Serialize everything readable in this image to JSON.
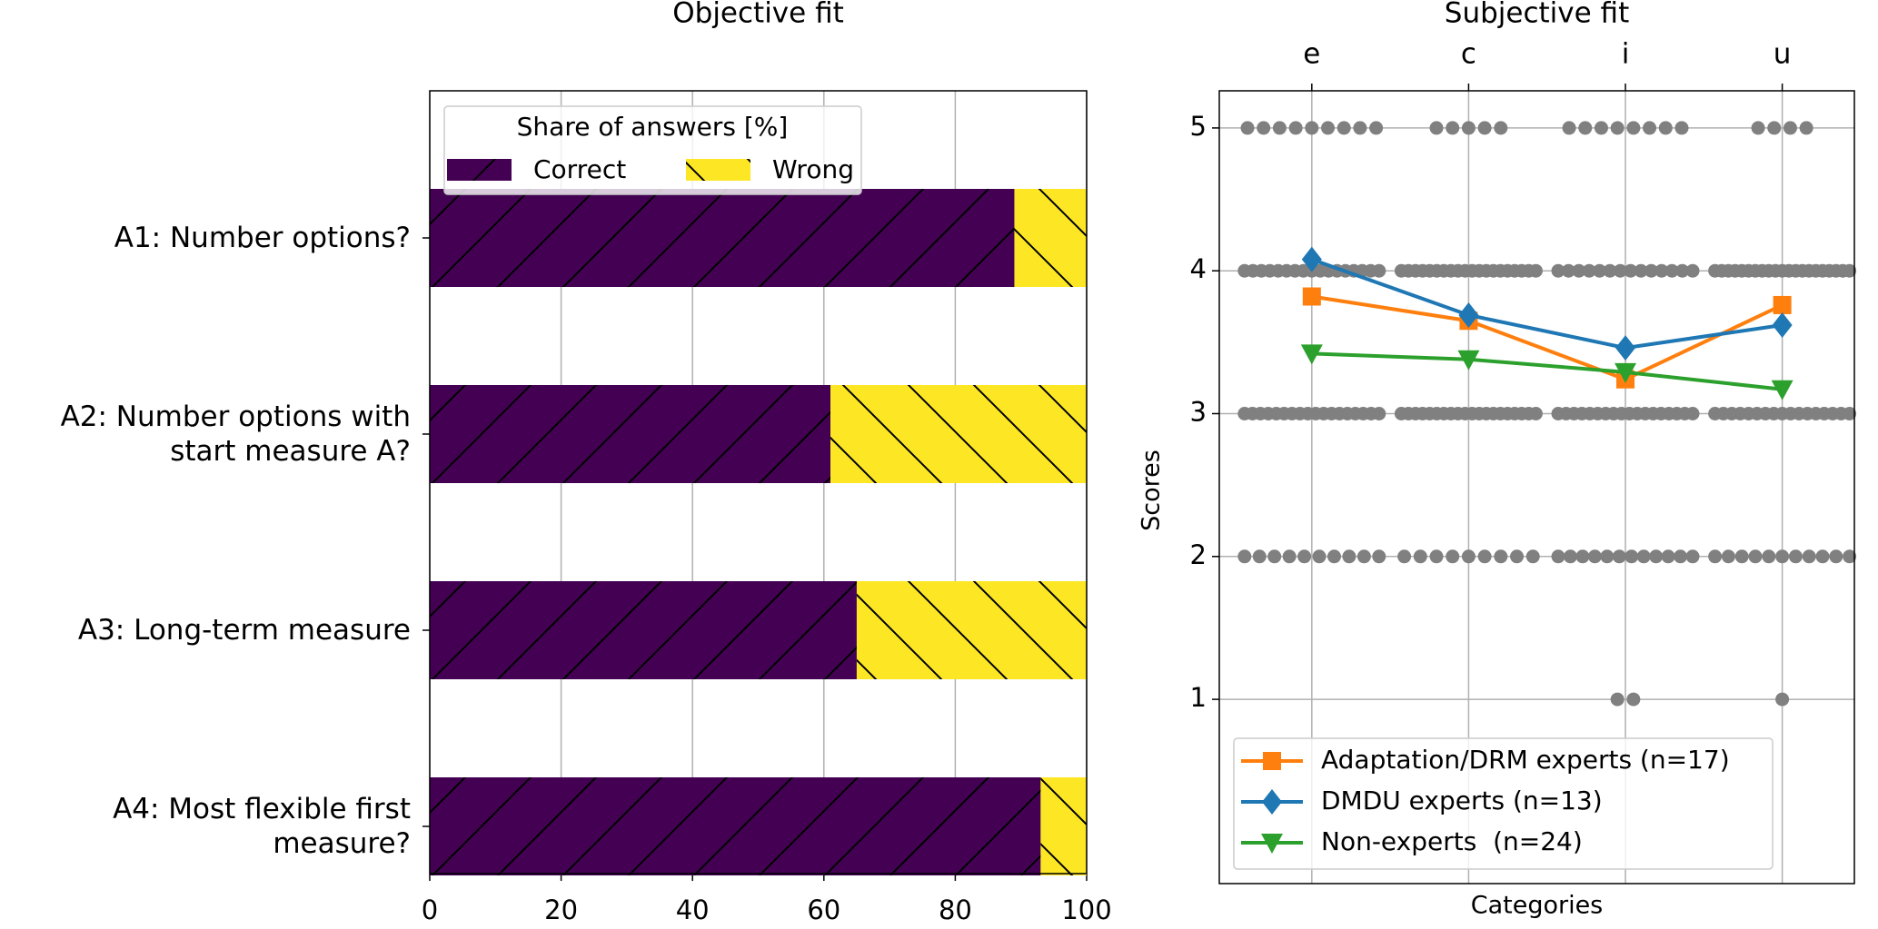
{
  "chart_data": [
    {
      "type": "bar",
      "orientation": "horizontal",
      "stacked": true,
      "title": "Objective fit",
      "categories": [
        "A1: Number options?",
        "A2: Number options with\nstart measure A?",
        "A3: Long-term measure",
        "A4: Most flexible first\nmeasure?"
      ],
      "series": [
        {
          "name": "Correct",
          "color": "#440154",
          "hatch": "/",
          "values": [
            89,
            61,
            65,
            93
          ]
        },
        {
          "name": "Wrong",
          "color": "#fde725",
          "hatch": "\\",
          "values": [
            11,
            39,
            35,
            7
          ]
        }
      ],
      "legend_title": "Share of answers [%]",
      "legend": "upper left",
      "xlim": [
        0,
        100
      ],
      "xticks": [
        0,
        20,
        40,
        60,
        80,
        100
      ],
      "grid": true
    },
    {
      "type": "line",
      "title": "Subjective fit",
      "categories": [
        "e",
        "c",
        "i",
        "u"
      ],
      "xlabel": "Categories",
      "ylabel": "Scores",
      "xlim": [
        -0.59,
        3.46
      ],
      "ylim": [
        -0.29,
        5.26
      ],
      "yticks": [
        1,
        2,
        3,
        4,
        5
      ],
      "grid": true,
      "legend": "lower left",
      "point_color": "#808080",
      "point_scores": [
        1,
        2,
        3,
        4,
        5
      ],
      "point_counts": [
        [
          0,
          10,
          18,
          17,
          9
        ],
        [
          0,
          9,
          20,
          20,
          5
        ],
        [
          2,
          12,
          18,
          14,
          8
        ],
        [
          1,
          11,
          17,
          21,
          4
        ]
      ],
      "series": [
        {
          "name": "Adaptation/DRM experts (n=17)",
          "color": "#ff7f0e",
          "marker": "square",
          "values": [
            3.82,
            3.65,
            3.24,
            3.76
          ]
        },
        {
          "name": "DMDU experts (n=13)",
          "color": "#1f77b4",
          "marker": "diamond",
          "values": [
            4.08,
            3.69,
            3.46,
            3.62
          ]
        },
        {
          "name": "Non-experts  (n=24)",
          "color": "#2ca02c",
          "marker": "triangle-down",
          "values": [
            3.42,
            3.38,
            3.29,
            3.17
          ]
        }
      ]
    }
  ]
}
